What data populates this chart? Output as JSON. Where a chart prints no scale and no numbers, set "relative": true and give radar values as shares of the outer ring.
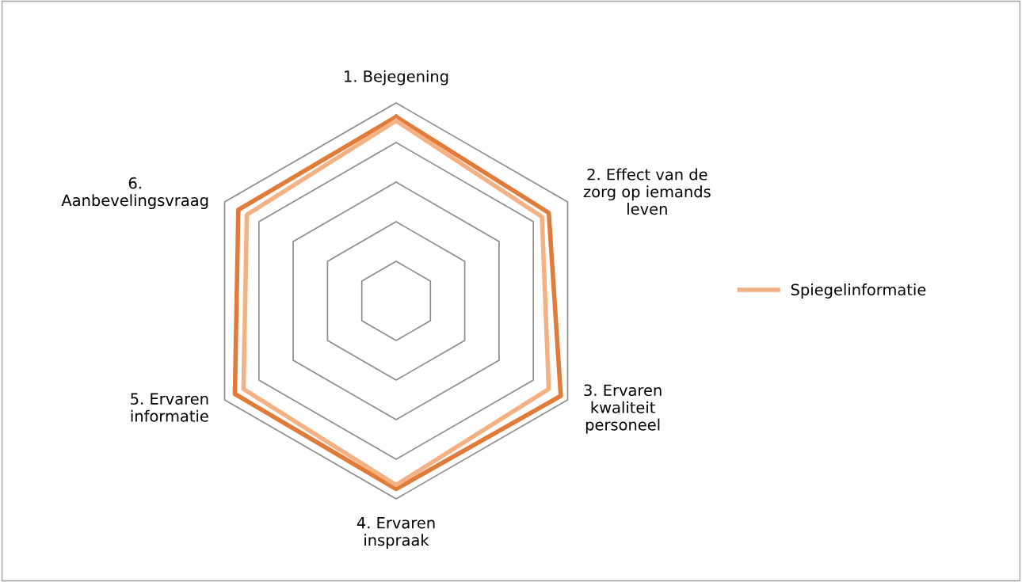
{
  "chart_data": {
    "type": "radar",
    "relative": true,
    "grid": true,
    "legend": "right",
    "categories": [
      "1. Bejegening",
      "2. Effect van de zorg op iemands leven",
      "3. Ervaren kwaliteit personeel",
      "4. Ervaren inspraak",
      "5. Ervaren informatie",
      "6. Aanbevelingsvraag"
    ],
    "series": [
      {
        "color": "#e07b39",
        "values": [
          0.93,
          0.89,
          0.96,
          0.95,
          0.94,
          0.92
        ]
      },
      {
        "name": "Spiegelinformatie",
        "color": "#f4b183",
        "values": [
          0.91,
          0.85,
          0.89,
          0.93,
          0.89,
          0.87
        ]
      }
    ]
  }
}
